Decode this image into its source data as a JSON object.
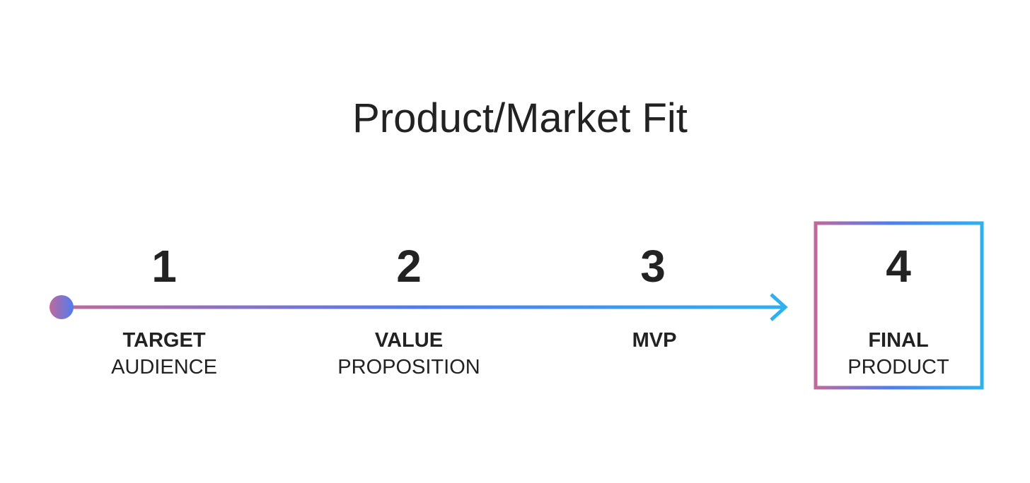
{
  "title": "Product/Market Fit",
  "colors": {
    "gradient_start": "#c0689c",
    "gradient_mid": "#4f7df0",
    "gradient_end": "#2fb0f0",
    "text": "#222222",
    "background": "#ffffff"
  },
  "steps": [
    {
      "number": "1",
      "label_bold": "TARGET",
      "label_regular": "AUDIENCE"
    },
    {
      "number": "2",
      "label_bold": "VALUE",
      "label_regular": "PROPOSITION"
    },
    {
      "number": "3",
      "label_bold": "MVP",
      "label_regular": ""
    },
    {
      "number": "4",
      "label_bold": "FINAL",
      "label_regular": "PRODUCT"
    }
  ]
}
